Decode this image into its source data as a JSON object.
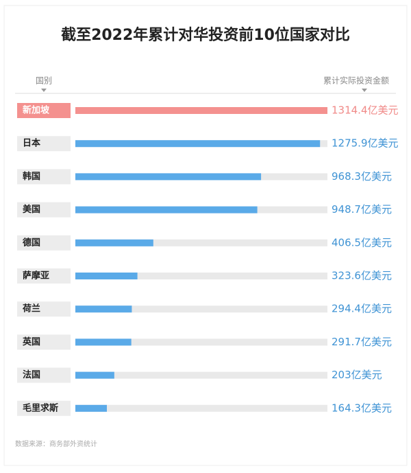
{
  "chart_data": {
    "type": "bar",
    "orientation": "horizontal",
    "title": "截至2022年累计对华投资前10位国家对比",
    "category_header": "国别",
    "value_header": "累计实际投资金额",
    "categories": [
      "新加坡",
      "日本",
      "韩国",
      "美国",
      "德国",
      "萨摩亚",
      "荷兰",
      "英国",
      "法国",
      "毛里求斯"
    ],
    "values": [
      1314.4,
      1275.9,
      968.3,
      948.7,
      406.5,
      323.6,
      294.4,
      291.7,
      203,
      164.3
    ],
    "value_labels": [
      "1314.4亿美元",
      "1275.9亿美元",
      "968.3亿美元",
      "948.7亿美元",
      "406.5亿美元",
      "323.6亿美元",
      "294.4亿美元",
      "291.7亿美元",
      "203亿美元",
      "164.3亿美元"
    ],
    "colors": [
      "#f4918f",
      "#5aaae8",
      "#5aaae8",
      "#5aaae8",
      "#5aaae8",
      "#5aaae8",
      "#5aaae8",
      "#5aaae8",
      "#5aaae8",
      "#5aaae8"
    ],
    "source": "数据来源：商务部外资统计"
  }
}
